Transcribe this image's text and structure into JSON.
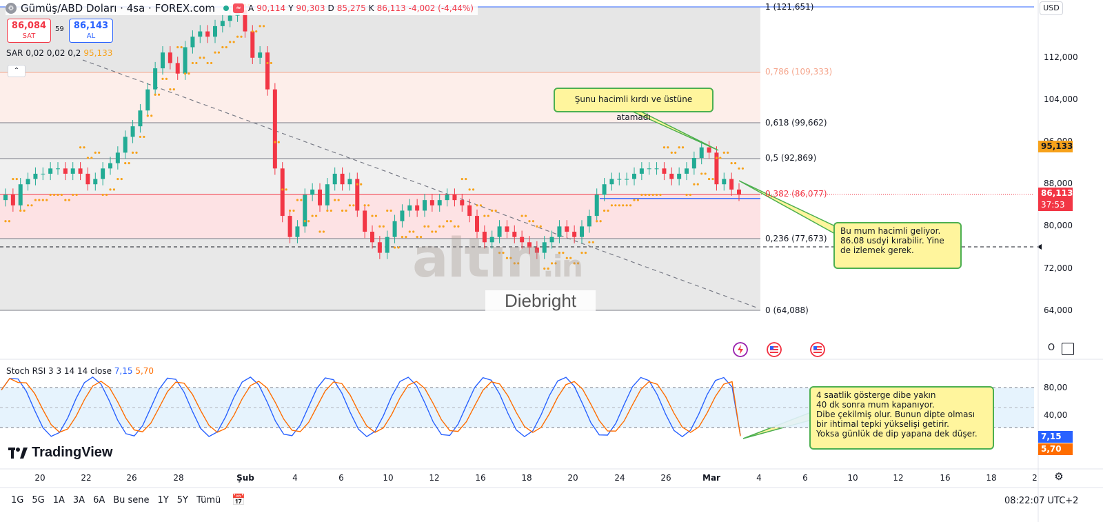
{
  "header": {
    "title": "Gümüş/ABD Doları · 4sa · FOREX.com",
    "ohlc": {
      "o_label": "A",
      "o": "90,114",
      "h_label": "Y",
      "h": "90,303",
      "l_label": "D",
      "l": "85,275",
      "c_label": "K",
      "c": "86,113",
      "change": "-4,002 (-4,44%)"
    },
    "sell": {
      "value": "86,084",
      "label": "SAT"
    },
    "buy": {
      "value": "86,143",
      "label": "AL"
    },
    "spread": "59",
    "sar_label": "SAR 0,02 0,02 0,2",
    "sar_value": "95,133",
    "stoch_label": "Stoch RSI 3 3 14 14 close",
    "stoch_k": "7,15",
    "stoch_d": "5,70"
  },
  "right_scale": {
    "currency": "USD",
    "ticks": [
      "112,000",
      "104,000",
      "96,000",
      "88,000",
      "80,000",
      "72,000",
      "64,000"
    ],
    "sar_tag": "95,133",
    "price_tag": "86,113",
    "timer_tag": "37:53",
    "stoch_ticks": [
      "80,00",
      "40,00"
    ],
    "k_tag": "7,15",
    "d_tag": "5,70",
    "o_button": "O"
  },
  "fib_levels": [
    {
      "label": "1 (121,651)",
      "color": "#131722"
    },
    {
      "label": "0,786 (109,333)",
      "color": "#f5a58c"
    },
    {
      "label": "0,618 (99,662)",
      "color": "#131722"
    },
    {
      "label": "0,5 (92,869)",
      "color": "#131722"
    },
    {
      "label": "0,382 (86,077)",
      "color": "#f23645"
    },
    {
      "label": "0,236 (77,673)",
      "color": "#131722"
    },
    {
      "label": "0 (64,088)",
      "color": "#131722"
    }
  ],
  "callouts": {
    "top": "Şunu hacimli kırdı ve üstüne atamadı",
    "middle": [
      "Bu mum hacimli geliyor.",
      "86.08 usdyi kırabilir. Yine",
      "de izlemek gerek."
    ],
    "bottom": [
      "4 saatlik gösterge dibe yakın",
      "40 dk sonra mum kapanıyor.",
      "Dibe çekilmiş olur. Bunun dipte olması",
      "bir ihtimal tepki yükselişi getirir.",
      "Yoksa günlük de dip yapana dek düşer."
    ]
  },
  "watermark": {
    "logo": "altın",
    "logo_suffix": ".in",
    "author": "Diebright"
  },
  "time_axis": [
    "20",
    "22",
    "26",
    "28",
    "Şub",
    "4",
    "6",
    "10",
    "12",
    "16",
    "18",
    "20",
    "24",
    "26",
    "Mar",
    "4",
    "6",
    "10",
    "12",
    "16",
    "18",
    "2"
  ],
  "periods": [
    "1G",
    "5G",
    "1A",
    "3A",
    "6A",
    "Bu sene",
    "1Y",
    "5Y",
    "Tümü"
  ],
  "clock": "08:22:07 UTC+2",
  "brand": "TradingView",
  "colors": {
    "up": "#22ab94",
    "down": "#f23645",
    "sar": "#f7a21b",
    "k": "#2962ff",
    "d": "#ff6d00",
    "callout_bg": "#fff59d",
    "callout_border": "#4caf50"
  },
  "chart_data": {
    "type": "candlestick",
    "symbol": "Gümüş/ABD Doları",
    "interval": "4sa",
    "price_range": [
      60,
      123
    ],
    "candles_close": [
      86,
      84,
      88,
      89,
      90,
      90,
      91,
      91,
      90,
      91,
      90,
      88,
      89,
      91,
      92,
      94,
      97,
      99,
      102,
      106,
      110,
      113,
      111,
      109,
      114,
      116,
      117,
      116,
      118,
      119,
      120,
      121,
      117,
      112,
      113,
      106,
      91,
      82,
      78,
      80,
      86,
      87,
      84,
      88,
      90,
      88,
      89,
      83,
      79,
      77,
      75,
      78,
      81,
      83,
      84,
      83,
      85,
      84,
      85,
      86,
      85,
      84,
      82,
      79,
      77,
      78,
      80,
      79,
      78,
      77,
      76,
      75,
      77,
      78,
      80,
      79,
      78,
      80,
      82,
      86,
      88,
      89,
      89,
      89,
      90,
      91,
      91,
      91,
      90,
      89,
      90,
      91,
      93,
      95,
      94,
      88,
      89,
      87,
      86
    ]
  }
}
